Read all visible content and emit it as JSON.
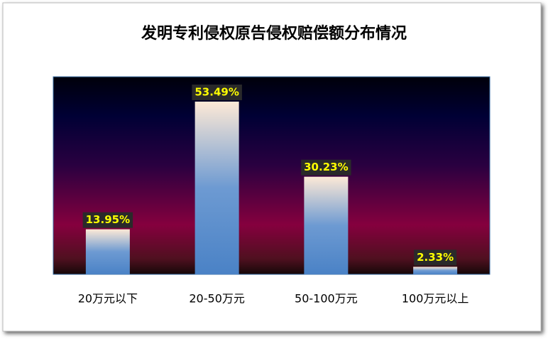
{
  "chart_data": {
    "type": "bar",
    "title": "发明专利侵权原告侵权赔偿额分布情况",
    "categories": [
      "20万元以下",
      "20-50万元",
      "50-100万元",
      "100万元以上"
    ],
    "values": [
      13.95,
      53.49,
      30.23,
      2.33
    ],
    "value_labels": [
      "13.95%",
      "53.49%",
      "30.23%",
      "2.33%"
    ],
    "ylim": [
      0,
      60
    ],
    "grid": false,
    "legend": false
  }
}
